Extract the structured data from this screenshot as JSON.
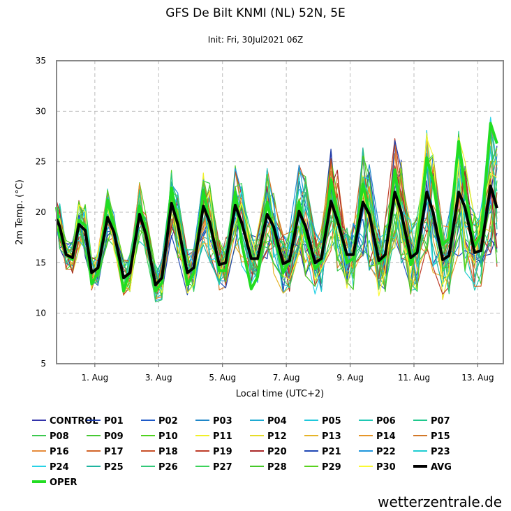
{
  "chart_data": {
    "type": "line",
    "title": "GFS De Bilt KNMI (NL) 52N, 5E",
    "subtitle": "Init: Fri, 30Jul2021 06Z",
    "xlabel": "Local time (UTC+2)",
    "ylabel": "2m Temp. (°C)",
    "ylim": [
      5,
      35
    ],
    "yticks": [
      "5",
      "10",
      "15",
      "20",
      "25",
      "30",
      "35"
    ],
    "xlim": [
      -0.2,
      13.8
    ],
    "xticks": [
      {
        "day": 1,
        "label": "1. Aug"
      },
      {
        "day": 3,
        "label": "3. Aug"
      },
      {
        "day": 5,
        "label": "5. Aug"
      },
      {
        "day": 7,
        "label": "7. Aug"
      },
      {
        "day": 9,
        "label": "9. Aug"
      },
      {
        "day": 11,
        "label": "11. Aug"
      },
      {
        "day": 13,
        "label": "13. Aug"
      }
    ],
    "grid": true,
    "legend_position": "bottom",
    "avg": [
      [
        -0.3,
        19.3
      ],
      [
        -0.1,
        18.6
      ],
      [
        0.1,
        15.8
      ],
      [
        0.3,
        15.5
      ],
      [
        0.5,
        18.8
      ],
      [
        0.7,
        18.2
      ],
      [
        0.9,
        14.0
      ],
      [
        1.1,
        14.5
      ],
      [
        1.4,
        19.5
      ],
      [
        1.6,
        18.0
      ],
      [
        1.9,
        13.5
      ],
      [
        2.1,
        14.0
      ],
      [
        2.4,
        19.8
      ],
      [
        2.6,
        17.8
      ],
      [
        2.9,
        12.8
      ],
      [
        3.1,
        13.5
      ],
      [
        3.4,
        20.9
      ],
      [
        3.6,
        18.8
      ],
      [
        3.9,
        14.0
      ],
      [
        4.1,
        14.5
      ],
      [
        4.4,
        20.6
      ],
      [
        4.6,
        19.0
      ],
      [
        4.9,
        14.8
      ],
      [
        5.1,
        15.0
      ],
      [
        5.4,
        20.7
      ],
      [
        5.6,
        19.0
      ],
      [
        5.9,
        15.4
      ],
      [
        6.1,
        15.4
      ],
      [
        6.4,
        19.8
      ],
      [
        6.6,
        18.6
      ],
      [
        6.9,
        14.9
      ],
      [
        7.1,
        15.2
      ],
      [
        7.4,
        20.1
      ],
      [
        7.6,
        18.6
      ],
      [
        7.9,
        15.0
      ],
      [
        8.1,
        15.4
      ],
      [
        8.4,
        21.1
      ],
      [
        8.6,
        19.2
      ],
      [
        8.9,
        15.8
      ],
      [
        9.1,
        15.8
      ],
      [
        9.4,
        21.0
      ],
      [
        9.6,
        19.8
      ],
      [
        9.9,
        15.2
      ],
      [
        10.1,
        15.8
      ],
      [
        10.4,
        22.0
      ],
      [
        10.6,
        20.0
      ],
      [
        10.9,
        15.5
      ],
      [
        11.1,
        16.0
      ],
      [
        11.4,
        22.0
      ],
      [
        11.6,
        20.0
      ],
      [
        11.9,
        15.3
      ],
      [
        12.1,
        15.7
      ],
      [
        12.4,
        22.0
      ],
      [
        12.6,
        20.5
      ],
      [
        12.9,
        16.0
      ],
      [
        13.1,
        16.2
      ],
      [
        13.4,
        22.6
      ],
      [
        13.6,
        20.4
      ]
    ],
    "oper": [
      [
        -0.3,
        20.5
      ],
      [
        -0.1,
        17.8
      ],
      [
        0.1,
        15.8
      ],
      [
        0.3,
        15.3
      ],
      [
        0.5,
        19.2
      ],
      [
        0.7,
        18.7
      ],
      [
        0.9,
        12.9
      ],
      [
        1.1,
        14.0
      ],
      [
        1.4,
        21.2
      ],
      [
        1.6,
        18.4
      ],
      [
        1.9,
        12.2
      ],
      [
        2.1,
        14.2
      ],
      [
        2.4,
        20.6
      ],
      [
        2.6,
        18.4
      ],
      [
        2.9,
        12.2
      ],
      [
        3.1,
        13.0
      ],
      [
        3.4,
        22.4
      ],
      [
        3.6,
        19.0
      ],
      [
        3.9,
        12.8
      ],
      [
        4.1,
        14.0
      ],
      [
        4.4,
        22.2
      ],
      [
        4.6,
        19.0
      ],
      [
        4.9,
        14.2
      ],
      [
        5.1,
        14.2
      ],
      [
        5.4,
        22.0
      ],
      [
        5.6,
        17.0
      ],
      [
        5.9,
        12.4
      ],
      [
        6.1,
        13.6
      ],
      [
        6.4,
        21.0
      ],
      [
        6.6,
        18.2
      ],
      [
        6.9,
        14.0
      ],
      [
        7.1,
        15.2
      ],
      [
        7.4,
        21.0
      ],
      [
        7.6,
        17.6
      ],
      [
        7.9,
        14.4
      ],
      [
        8.1,
        15.2
      ],
      [
        8.4,
        23.2
      ],
      [
        8.6,
        20.0
      ],
      [
        8.9,
        15.0
      ],
      [
        9.1,
        15.4
      ],
      [
        9.4,
        22.8
      ],
      [
        9.6,
        20.0
      ],
      [
        9.9,
        15.0
      ],
      [
        10.1,
        15.6
      ],
      [
        10.4,
        24.2
      ],
      [
        10.6,
        19.8
      ],
      [
        10.9,
        14.8
      ],
      [
        11.1,
        16.8
      ],
      [
        11.4,
        25.4
      ],
      [
        11.6,
        23.0
      ],
      [
        11.9,
        16.8
      ],
      [
        12.1,
        17.4
      ],
      [
        12.4,
        27.0
      ],
      [
        12.6,
        22.2
      ],
      [
        12.9,
        16.6
      ],
      [
        13.1,
        17.8
      ],
      [
        13.4,
        28.8
      ],
      [
        13.6,
        26.8
      ]
    ],
    "members": [
      {
        "name": "CONTROL",
        "color": "#3333aa"
      },
      {
        "name": "P01",
        "color": "#1e3ca8"
      },
      {
        "name": "P02",
        "color": "#1e5ac8"
      },
      {
        "name": "P03",
        "color": "#1e86c8"
      },
      {
        "name": "P04",
        "color": "#1eaad2"
      },
      {
        "name": "P05",
        "color": "#1ec8dc"
      },
      {
        "name": "P06",
        "color": "#1ec8b4"
      },
      {
        "name": "P07",
        "color": "#1ec88c"
      },
      {
        "name": "P08",
        "color": "#3cc850"
      },
      {
        "name": "P09",
        "color": "#46c832"
      },
      {
        "name": "P10",
        "color": "#50d21e"
      },
      {
        "name": "P11",
        "color": "#f0f028"
      },
      {
        "name": "P12",
        "color": "#e6dc28"
      },
      {
        "name": "P13",
        "color": "#e6b428"
      },
      {
        "name": "P14",
        "color": "#e69628"
      },
      {
        "name": "P15",
        "color": "#d27828"
      },
      {
        "name": "P16",
        "color": "#e68c3c"
      },
      {
        "name": "P17",
        "color": "#d26428"
      },
      {
        "name": "P18",
        "color": "#c85028"
      },
      {
        "name": "P19",
        "color": "#be3c28"
      },
      {
        "name": "P20",
        "color": "#aa2828"
      },
      {
        "name": "P21",
        "color": "#1e46b4"
      },
      {
        "name": "P22",
        "color": "#1e96dc"
      },
      {
        "name": "P23",
        "color": "#1ecdd2"
      },
      {
        "name": "P24",
        "color": "#28d2e6"
      },
      {
        "name": "P25",
        "color": "#1eb4a0"
      },
      {
        "name": "P26",
        "color": "#32c878"
      },
      {
        "name": "P27",
        "color": "#3cd25a"
      },
      {
        "name": "P28",
        "color": "#46c828"
      },
      {
        "name": "P29",
        "color": "#5ad21e"
      },
      {
        "name": "P30",
        "color": "#fafa32"
      }
    ],
    "avg_style": {
      "name": "AVG",
      "color": "#000000"
    },
    "oper_style": {
      "name": "OPER",
      "color": "#22dd22"
    }
  },
  "credit": "wetterzentrale.de"
}
